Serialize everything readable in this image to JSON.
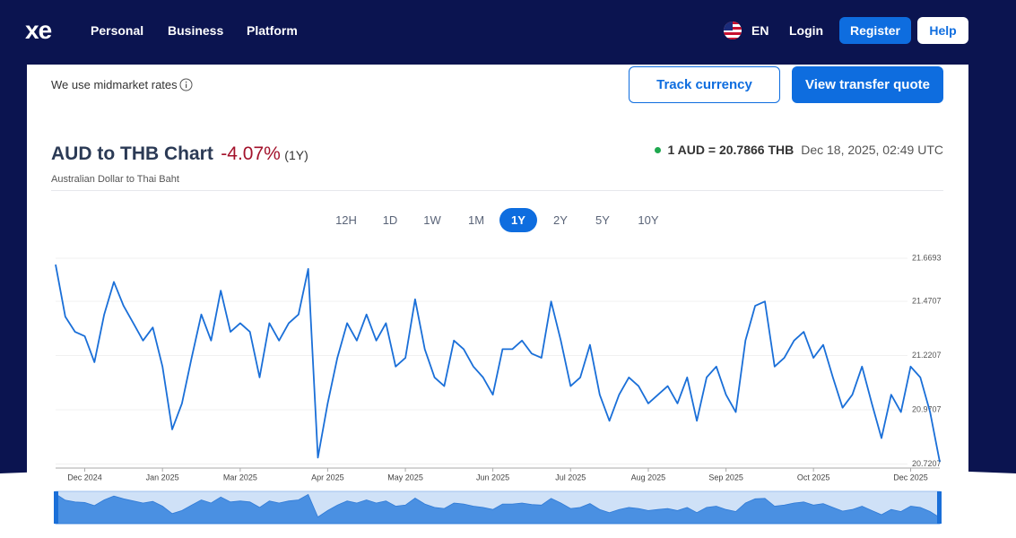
{
  "nav": {
    "logo": "xe",
    "links": [
      "Personal",
      "Business",
      "Platform"
    ],
    "language": "EN",
    "login": "Login",
    "register": "Register",
    "help": "Help"
  },
  "notice": "We use midmarket rates",
  "buttons": {
    "track": "Track currency",
    "quote": "View transfer quote"
  },
  "header": {
    "title": "AUD to THB Chart",
    "change": "-4.07%",
    "period": "(1Y)",
    "subtitle": "Australian Dollar to Thai Baht",
    "rate": "1 AUD = 20.7866 THB",
    "timestamp": "Dec 18, 2025, 02:49 UTC"
  },
  "ranges": [
    "12H",
    "1D",
    "1W",
    "1M",
    "1Y",
    "2Y",
    "5Y",
    "10Y"
  ],
  "chart_data": {
    "type": "line",
    "color": "#1a6fd8",
    "grid": true,
    "categories": [
      null,
      null,
      null,
      "Dec 2024",
      null,
      null,
      null,
      null,
      null,
      null,
      null,
      "Jan 2025",
      null,
      null,
      null,
      null,
      null,
      null,
      null,
      "Mar 2025",
      null,
      null,
      null,
      null,
      null,
      null,
      null,
      null,
      "Apr 2025",
      null,
      null,
      null,
      null,
      null,
      null,
      null,
      "May 2025",
      null,
      null,
      null,
      null,
      null,
      null,
      null,
      null,
      "Jun 2025",
      null,
      null,
      null,
      null,
      null,
      null,
      null,
      "Jul 2025",
      null,
      null,
      null,
      null,
      null,
      null,
      null,
      "Aug 2025",
      null,
      null,
      null,
      null,
      null,
      null,
      null,
      "Sep 2025",
      null,
      null,
      null,
      null,
      null,
      null,
      null,
      null,
      "Oct 2025",
      null,
      null,
      null,
      null,
      null,
      null,
      null,
      null,
      null,
      "Dec 2025",
      null,
      null,
      null
    ],
    "values": [
      21.64,
      21.4,
      21.33,
      21.31,
      21.19,
      21.41,
      21.56,
      21.45,
      21.37,
      21.29,
      21.35,
      21.17,
      20.88,
      21.0,
      21.21,
      21.41,
      21.29,
      21.52,
      21.33,
      21.37,
      21.33,
      21.12,
      21.37,
      21.29,
      21.37,
      21.41,
      21.62,
      20.75,
      21.0,
      21.21,
      21.37,
      21.29,
      21.41,
      21.29,
      21.37,
      21.17,
      21.21,
      21.48,
      21.25,
      21.12,
      21.08,
      21.29,
      21.25,
      21.17,
      21.12,
      21.04,
      21.25,
      21.25,
      21.29,
      21.23,
      21.21,
      21.47,
      21.29,
      21.08,
      21.12,
      21.27,
      21.04,
      20.92,
      21.04,
      21.12,
      21.08,
      21.0,
      21.04,
      21.08,
      21.0,
      21.12,
      20.92,
      21.12,
      21.17,
      21.04,
      20.96,
      21.29,
      21.45,
      21.47,
      21.17,
      21.21,
      21.29,
      21.33,
      21.21,
      21.27,
      21.12,
      20.98,
      21.04,
      21.17,
      21.0,
      20.84,
      21.04,
      20.96,
      21.17,
      21.12,
      20.96,
      20.73
    ],
    "ylim": [
      20.702,
      21.6693
    ],
    "yticks": [
      20.7207,
      20.9707,
      21.2207,
      21.4707,
      21.6693
    ]
  }
}
